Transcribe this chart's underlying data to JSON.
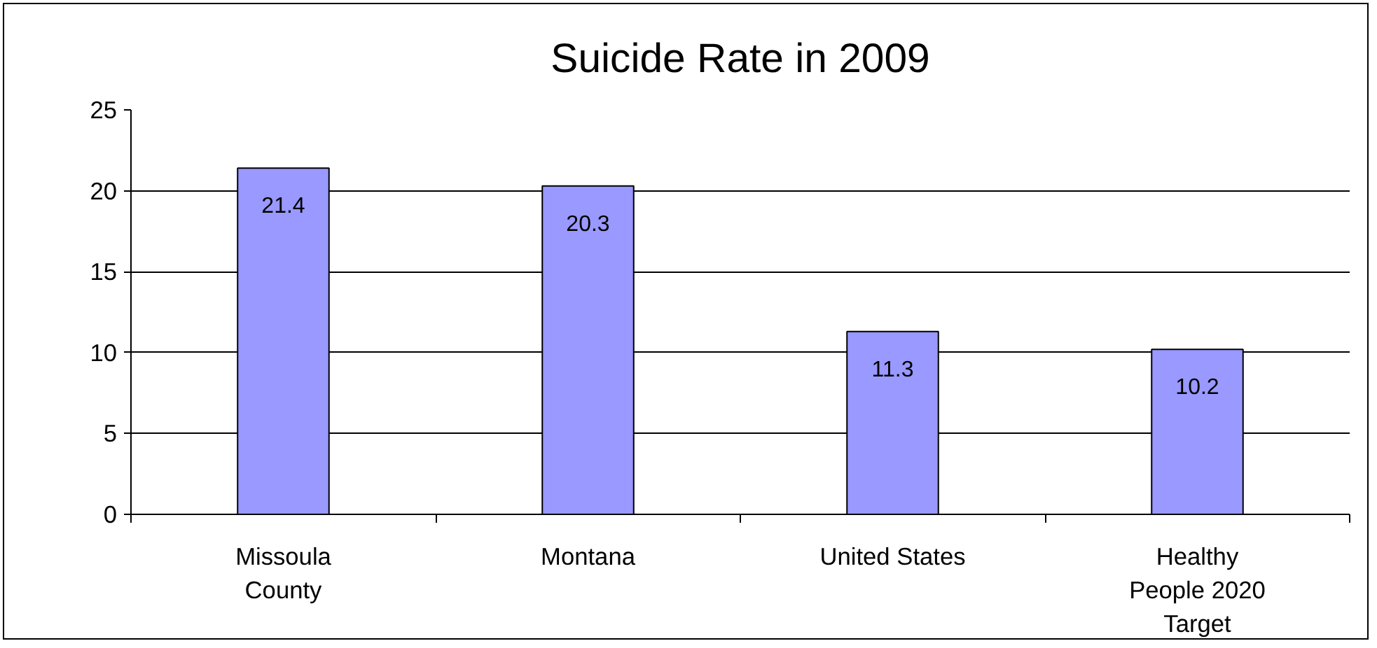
{
  "chart_data": {
    "type": "bar",
    "title": "Suicide Rate in 2009",
    "categories": [
      "Missoula County",
      "Montana",
      "United States",
      "Healthy People 2020 Target"
    ],
    "values": [
      21.4,
      20.3,
      11.3,
      10.2
    ],
    "color": "#9999ff",
    "ylim": [
      0,
      25
    ],
    "yticks": [
      0,
      5,
      10,
      15,
      20,
      25
    ],
    "grid": "y",
    "data_labels": true
  }
}
